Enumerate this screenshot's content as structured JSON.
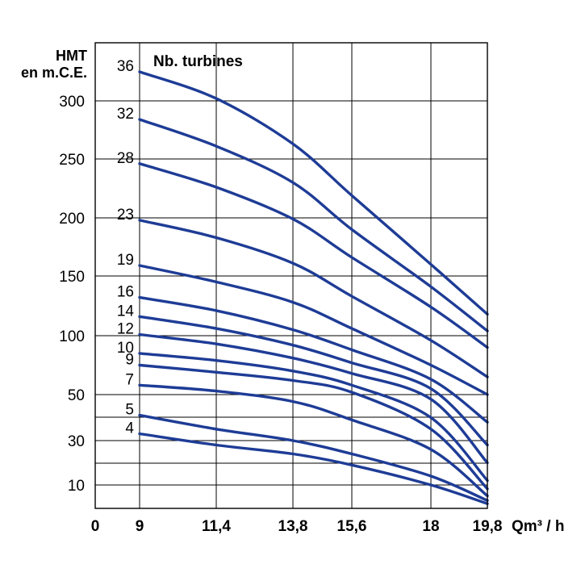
{
  "chart_data": {
    "type": "line",
    "ylabel_line1": "HMT",
    "ylabel_line2": "en m.C.E.",
    "xlabel": "Qm³ / h",
    "legend_title": "Nb. turbines",
    "x_ticks": [
      "0",
      "9",
      "11,4",
      "13,8",
      "15,6",
      "18",
      "19,8"
    ],
    "y_ticks": [
      "10",
      "30",
      "50",
      "100",
      "150",
      "200",
      "250",
      "300"
    ],
    "line_color": "#1e3c96",
    "x": [
      9,
      11.4,
      13.8,
      15.6,
      18,
      19.8
    ],
    "series": [
      {
        "name": "36",
        "values": [
          325,
          302,
          263,
          219,
          160,
          118
        ]
      },
      {
        "name": "32",
        "values": [
          284,
          261,
          230,
          190,
          141,
          104
        ]
      },
      {
        "name": "28",
        "values": [
          246,
          226,
          199,
          166,
          124,
          90
        ]
      },
      {
        "name": "23",
        "values": [
          198,
          183,
          161,
          133,
          96,
          65
        ]
      },
      {
        "name": "19",
        "values": [
          159,
          145,
          128,
          106,
          75,
          50
        ]
      },
      {
        "name": "16",
        "values": [
          132,
          121,
          105,
          88,
          63,
          38
        ]
      },
      {
        "name": "14",
        "values": [
          116,
          106,
          92,
          77,
          55,
          28
        ]
      },
      {
        "name": "12",
        "values": [
          101,
          93,
          81,
          68,
          48,
          20
        ]
      },
      {
        "name": "10",
        "values": [
          85,
          79,
          70,
          58,
          40,
          12
        ]
      },
      {
        "name": "9",
        "values": [
          75,
          69,
          62,
          52,
          35,
          5
        ]
      },
      {
        "name": "7",
        "values": [
          58,
          53,
          47,
          39,
          26,
          -4
        ]
      },
      {
        "name": "5",
        "values": [
          41,
          35,
          30,
          24,
          14,
          -10
        ]
      },
      {
        "name": "4",
        "values": [
          33,
          28,
          24,
          19,
          10,
          -14
        ]
      }
    ]
  }
}
